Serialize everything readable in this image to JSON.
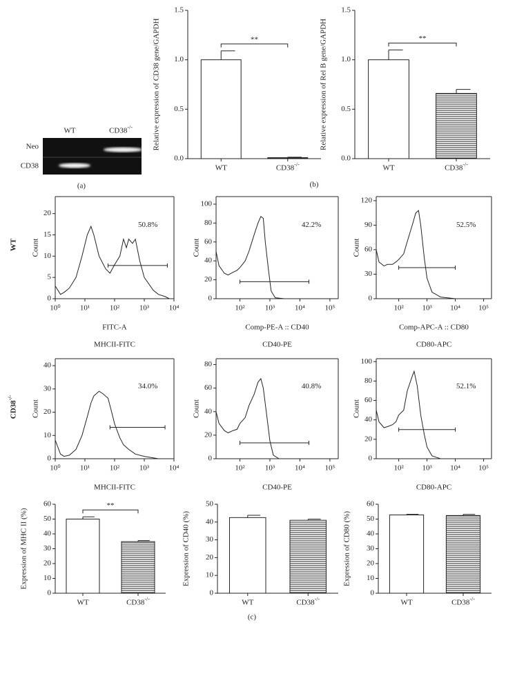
{
  "gel": {
    "columns": [
      "WT",
      "CD38-/-"
    ],
    "rows": [
      "Neo",
      "CD38"
    ]
  },
  "panel_labels": [
    "(a)",
    "(b)",
    "(c)"
  ],
  "row_labels": [
    "WT",
    "CD38-/-"
  ],
  "chart_data": [
    {
      "type": "bar",
      "ylabel": "Relative expression of CD38 gene/GAPDH",
      "categories": [
        "WT",
        "CD38-/-"
      ],
      "values": [
        1.0,
        0.01
      ],
      "errors": [
        0.09,
        0.005
      ],
      "ylim": [
        0,
        1.5
      ],
      "yticks": [
        {
          "value": 0,
          "label": "0.0"
        },
        0.5,
        {
          "value": 1,
          "label": "1.0"
        },
        1.5
      ],
      "annotation": "**"
    },
    {
      "type": "bar",
      "ylabel": "Relative expression of Rel B gene/GAPDH",
      "categories": [
        "WT",
        "CD38-/-"
      ],
      "values": [
        1.0,
        0.66
      ],
      "errors": [
        0.1,
        0.04
      ],
      "ylim": [
        0,
        1.5
      ],
      "yticks": [
        {
          "value": 0,
          "label": "0.0"
        },
        0.5,
        {
          "value": 1,
          "label": "1.0"
        },
        1.5
      ],
      "annotation": "**"
    },
    {
      "type": "line",
      "xscale": "log",
      "ylabel": "Count",
      "xlabel": "FITC-A",
      "caption": "MHCII-FITC",
      "annotation": "50.8%",
      "x": [
        1,
        1.5,
        2,
        3,
        5,
        8,
        12,
        16,
        20,
        30,
        50,
        70,
        100,
        150,
        200,
        250,
        300,
        400,
        500,
        700,
        1000,
        2000,
        3000,
        5000,
        7000
      ],
      "values": [
        3,
        1,
        1.5,
        2.5,
        5,
        10,
        15,
        17,
        15,
        10,
        7,
        6,
        8,
        10,
        14,
        12,
        14,
        13,
        14,
        9,
        5,
        2,
        1,
        0.5,
        0
      ],
      "gate": {
        "x": [
          60,
          6000
        ],
        "y": 7.8
      },
      "xlim": [
        1,
        10000
      ],
      "xticks": [
        {
          "value": 1,
          "label": "10⁰"
        },
        {
          "value": 10,
          "label": "10¹"
        },
        {
          "value": 100,
          "label": "10²"
        },
        {
          "value": 1000,
          "label": "10³"
        },
        {
          "value": 10000,
          "label": "10⁴"
        }
      ],
      "ylim": [
        0,
        24
      ],
      "yticks": [
        0,
        5,
        10,
        15,
        20
      ]
    },
    {
      "type": "line",
      "xscale": "log",
      "ylabel": "Count",
      "xlabel": "Comp-PE-A :: CD40",
      "caption": "CD40-PE",
      "annotation": "42.2%",
      "x": [
        16,
        20,
        30,
        40,
        60,
        80,
        100,
        150,
        200,
        300,
        400,
        500,
        600,
        700,
        900,
        1100,
        1500,
        3000
      ],
      "values": [
        50,
        35,
        27,
        25,
        28,
        30,
        33,
        40,
        50,
        68,
        80,
        87,
        85,
        60,
        30,
        8,
        1,
        0
      ],
      "gate": {
        "x": [
          100,
          20000
        ],
        "y": 18
      },
      "xlim": [
        16,
        190000
      ],
      "xticks": [
        {
          "value": 100,
          "label": "10²"
        },
        {
          "value": 1000,
          "label": "10³"
        },
        {
          "value": 10000,
          "label": "10⁴"
        },
        {
          "value": 100000,
          "label": "10⁵"
        }
      ],
      "ylim": [
        0,
        108
      ],
      "yticks": [
        0,
        20,
        40,
        60,
        80,
        100
      ]
    },
    {
      "type": "line",
      "xscale": "log",
      "ylabel": "Count",
      "xlabel": "Comp-APC-A :: CD80",
      "caption": "CD80-APC",
      "annotation": "52.5%",
      "x": [
        16,
        20,
        30,
        40,
        60,
        80,
        100,
        150,
        200,
        300,
        400,
        500,
        600,
        800,
        1000,
        1500,
        3000,
        10000
      ],
      "values": [
        60,
        45,
        40,
        42,
        42,
        45,
        48,
        55,
        70,
        90,
        105,
        108,
        90,
        50,
        25,
        8,
        2,
        0
      ],
      "gate": {
        "x": [
          100,
          10000
        ],
        "y": 38
      },
      "xlim": [
        16,
        190000
      ],
      "xticks": [
        {
          "value": 100,
          "label": "10²"
        },
        {
          "value": 1000,
          "label": "10³"
        },
        {
          "value": 10000,
          "label": "10⁴"
        },
        {
          "value": 100000,
          "label": "10⁵"
        }
      ],
      "ylim": [
        0,
        125
      ],
      "yticks": [
        0,
        30,
        60,
        90,
        120
      ]
    },
    {
      "type": "line",
      "xscale": "log",
      "ylabel": "Count",
      "xlabel": "MHCII-FITC",
      "annotation": "34.0%",
      "x": [
        1,
        1.5,
        2,
        3,
        5,
        8,
        12,
        16,
        20,
        30,
        40,
        60,
        80,
        100,
        150,
        200,
        300,
        500,
        1000,
        3000
      ],
      "values": [
        8,
        2,
        1,
        1.5,
        4,
        10,
        18,
        24,
        27,
        29,
        28,
        26,
        20,
        15,
        9,
        6,
        4,
        2,
        1,
        0
      ],
      "gate": {
        "x": [
          70,
          5000
        ],
        "y": 13.5
      },
      "xlim": [
        1,
        10000
      ],
      "xticks": [
        {
          "value": 1,
          "label": "10⁰"
        },
        {
          "value": 10,
          "label": "10¹"
        },
        {
          "value": 100,
          "label": "10²"
        },
        {
          "value": 1000,
          "label": "10³"
        },
        {
          "value": 10000,
          "label": "10⁴"
        }
      ],
      "ylim": [
        0,
        43
      ],
      "yticks": [
        0,
        10,
        20,
        30,
        40
      ]
    },
    {
      "type": "line",
      "xscale": "log",
      "ylabel": "Count",
      "xlabel": "CD40-PE",
      "annotation": "40.8%",
      "x": [
        16,
        20,
        30,
        40,
        60,
        80,
        100,
        150,
        200,
        300,
        400,
        500,
        600,
        800,
        1000,
        1300,
        2000
      ],
      "values": [
        40,
        30,
        24,
        22,
        24,
        25,
        30,
        35,
        45,
        55,
        65,
        68,
        60,
        35,
        15,
        3,
        0
      ],
      "gate": {
        "x": [
          100,
          20000
        ],
        "y": 13.5
      },
      "xlim": [
        16,
        190000
      ],
      "xticks": [
        {
          "value": 100,
          "label": "10²"
        },
        {
          "value": 1000,
          "label": "10³"
        },
        {
          "value": 10000,
          "label": "10⁴"
        },
        {
          "value": 100000,
          "label": "10⁵"
        }
      ],
      "ylim": [
        0,
        85
      ],
      "yticks": [
        0,
        20,
        40,
        60,
        80
      ]
    },
    {
      "type": "line",
      "xscale": "log",
      "ylabel": "Count",
      "xlabel": "CD80-APC",
      "annotation": "52.1%",
      "x": [
        16,
        20,
        30,
        40,
        60,
        80,
        100,
        150,
        200,
        300,
        350,
        450,
        600,
        800,
        1000,
        1500,
        3000
      ],
      "values": [
        50,
        38,
        32,
        33,
        35,
        38,
        45,
        50,
        70,
        85,
        90,
        75,
        45,
        25,
        12,
        3,
        0
      ],
      "gate": {
        "x": [
          100,
          10000
        ],
        "y": 30
      },
      "xlim": [
        16,
        190000
      ],
      "xticks": [
        {
          "value": 100,
          "label": "10²"
        },
        {
          "value": 1000,
          "label": "10³"
        },
        {
          "value": 10000,
          "label": "10⁴"
        },
        {
          "value": 100000,
          "label": "10⁵"
        }
      ],
      "ylim": [
        0,
        103
      ],
      "yticks": [
        0,
        20,
        40,
        60,
        80,
        100
      ]
    },
    {
      "type": "bar",
      "ylabel": "Expression of MHC II (%)",
      "categories": [
        "WT",
        "CD38-/-"
      ],
      "values": [
        50,
        34.8
      ],
      "errors": [
        1.5,
        0.7
      ],
      "ylim": [
        0,
        60
      ],
      "yticks": [
        0,
        10,
        20,
        30,
        40,
        50,
        60
      ],
      "annotation": "**"
    },
    {
      "type": "bar",
      "ylabel": "Expression of CD40 (%)",
      "categories": [
        "WT",
        "CD38-/-"
      ],
      "values": [
        42.5,
        41
      ],
      "errors": [
        1.3,
        0.6
      ],
      "ylim": [
        0,
        50
      ],
      "yticks": [
        0,
        10,
        20,
        30,
        40,
        50
      ]
    },
    {
      "type": "bar",
      "ylabel": "Expression of CD80 (%)",
      "categories": [
        "WT",
        "CD38-/-"
      ],
      "values": [
        52.8,
        52.4
      ],
      "errors": [
        0.4,
        0.8
      ],
      "ylim": [
        0,
        60
      ],
      "yticks": [
        0,
        10,
        20,
        30,
        40,
        50,
        60
      ]
    }
  ]
}
